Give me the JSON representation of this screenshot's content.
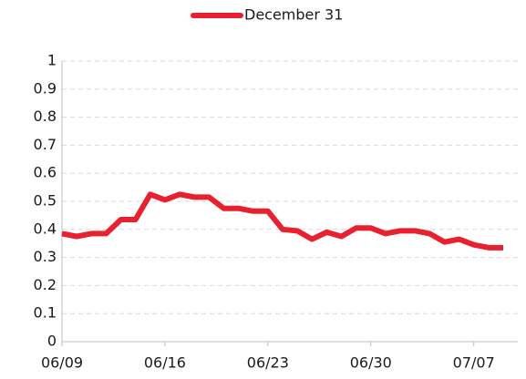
{
  "chart_data": {
    "type": "line",
    "categories": [
      "06/09",
      null,
      null,
      null,
      null,
      null,
      null,
      "06/16",
      null,
      null,
      null,
      null,
      null,
      null,
      "06/23",
      null,
      null,
      null,
      null,
      null,
      null,
      "06/30",
      null,
      null,
      null,
      null,
      null,
      null,
      "07/07",
      null,
      null
    ],
    "series": [
      {
        "name": "December 31",
        "color": "#e8202f",
        "values": [
          0.385,
          0.375,
          0.385,
          0.385,
          0.435,
          0.435,
          0.525,
          0.505,
          0.525,
          0.515,
          0.515,
          0.475,
          0.475,
          0.465,
          0.465,
          0.4,
          0.395,
          0.365,
          0.39,
          0.375,
          0.405,
          0.405,
          0.385,
          0.395,
          0.395,
          0.385,
          0.355,
          0.365,
          0.345,
          0.335,
          0.335
        ]
      }
    ],
    "ylim": [
      0,
      1
    ],
    "yticks": [
      0,
      0.1,
      0.2,
      0.3,
      0.4,
      0.5,
      0.6,
      0.7,
      0.8,
      0.9,
      1
    ],
    "grid": true,
    "legend": "top"
  }
}
